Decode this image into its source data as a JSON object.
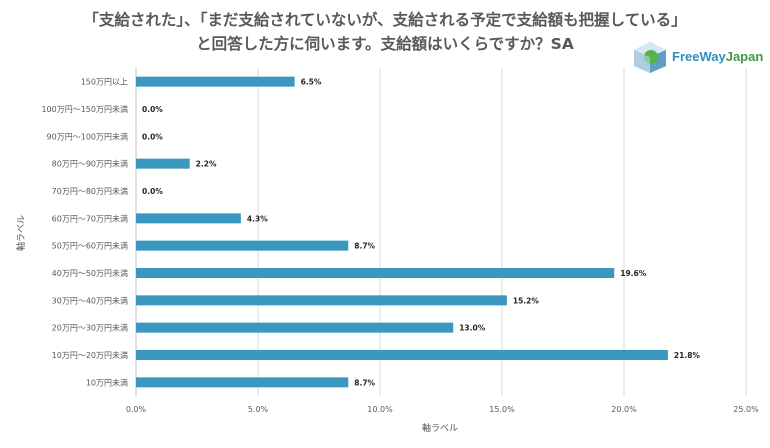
{
  "title": {
    "line1": "「支給された」、「まだ支給されていないが、支給される予定で支給額も把握している」",
    "line2": "と回答した方に伺います。支給額はいくらですか？SA"
  },
  "logo": {
    "text_part1": "FreeWay",
    "text_part2": "Japan"
  },
  "chart_data": {
    "type": "bar",
    "orientation": "horizontal",
    "categories": [
      "150万円以上",
      "100万円～150万円未満",
      "90万円～100万円未満",
      "80万円～90万円未満",
      "70万円～80万円未満",
      "60万円～70万円未満",
      "50万円～60万円未満",
      "40万円～50万円未満",
      "30万円～40万円未満",
      "20万円～30万円未満",
      "10万円～20万円未満",
      "10万円未満"
    ],
    "values": [
      6.5,
      0.0,
      0.0,
      2.2,
      0.0,
      4.3,
      8.7,
      19.6,
      15.2,
      13.0,
      21.8,
      8.7
    ],
    "value_labels": [
      "6.5%",
      "0.0%",
      "0.0%",
      "2.2%",
      "0.0%",
      "4.3%",
      "8.7%",
      "19.6%",
      "15.2%",
      "13.0%",
      "21.8%",
      "8.7%"
    ],
    "xlim": [
      0,
      25
    ],
    "xticks": [
      0,
      5,
      10,
      15,
      20,
      25
    ],
    "xtick_labels": [
      "0.0%",
      "5.0%",
      "10.0%",
      "15.0%",
      "20.0%",
      "25.0%"
    ],
    "xlabel": "軸ラベル",
    "ylabel": "軸ラベル",
    "grid": "vertical",
    "bar_color": "#3a97c0"
  }
}
